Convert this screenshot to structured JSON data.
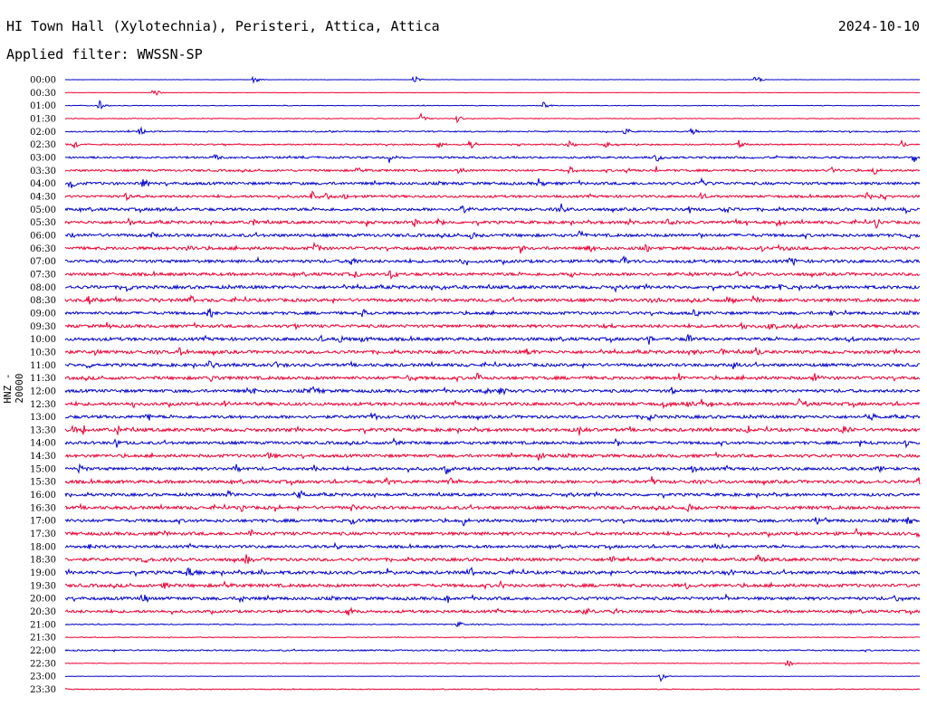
{
  "header": {
    "title": "HI Town Hall (Xylotechnia), Peristeri, Attica, Attica",
    "date": "2024-10-10",
    "filter": "Applied filter: WWSSN-SP",
    "channel_label": "HNZ - 20000"
  },
  "colors": {
    "odd_trace": "#0000cc",
    "even_trace": "#ee0033"
  },
  "chart_data": {
    "type": "line",
    "title": "HI Town Hall (Xylotechnia), Peristeri, Attica, Attica",
    "ylabel": "HNZ - 20000",
    "series": [
      {
        "label": "00:00",
        "amp": 0.2,
        "events": [
          280,
          458,
          835
        ]
      },
      {
        "label": "00:30",
        "amp": 0.2,
        "events": [
          170
        ]
      },
      {
        "label": "01:00",
        "amp": 0.4,
        "events": [
          110,
          600
        ]
      },
      {
        "label": "01:30",
        "amp": 0.5,
        "events": [
          465,
          505
        ]
      },
      {
        "label": "02:00",
        "amp": 0.8,
        "events": [
          155,
          690,
          765
        ]
      },
      {
        "label": "02:30",
        "amp": 0.9,
        "events": [
          82,
          485,
          520,
          628,
          668,
          815,
          995
        ]
      },
      {
        "label": "03:00",
        "amp": 1.3,
        "events": [
          238,
          430,
          725,
          1010
        ]
      },
      {
        "label": "03:30",
        "amp": 1.4,
        "events": [
          395,
          507,
          630,
          693,
          725,
          918,
          965
        ]
      },
      {
        "label": "04:00",
        "amp": 1.8,
        "events": [
          78,
          158,
          595,
          775
        ]
      },
      {
        "label": "04:30",
        "amp": 1.6,
        "events": [
          140,
          345,
          360,
          380,
          775,
          958,
          975
        ]
      },
      {
        "label": "05:00",
        "amp": 1.9,
        "events": [
          175,
          510,
          620,
          762,
          800,
          1000
        ]
      },
      {
        "label": "05:30",
        "amp": 1.9,
        "events": [
          142,
          280,
          405,
          458,
          482,
          693,
          737,
          825,
          860,
          968
        ]
      },
      {
        "label": "06:00",
        "amp": 2.0,
        "events": [
          80,
          168,
          520,
          640,
          770,
          1002
        ]
      },
      {
        "label": "06:30",
        "amp": 2.0,
        "events": [
          207,
          347,
          575,
          650,
          715,
          842,
          868
        ]
      },
      {
        "label": "07:00",
        "amp": 2.0,
        "events": [
          285,
          388,
          510,
          688,
          875
        ]
      },
      {
        "label": "07:30",
        "amp": 2.0,
        "events": [
          392,
          432,
          630,
          763,
          815
        ]
      },
      {
        "label": "08:00",
        "amp": 2.1,
        "events": [
          140,
          488,
          680,
          862
        ]
      },
      {
        "label": "08:30",
        "amp": 2.1,
        "events": [
          98,
          168,
          210,
          718,
          805,
          832
        ]
      },
      {
        "label": "09:00",
        "amp": 1.9,
        "events": [
          232,
          402,
          768,
          918
        ]
      },
      {
        "label": "09:30",
        "amp": 2.0,
        "events": [
          118,
          327,
          670,
          820,
          848,
          878
        ]
      },
      {
        "label": "10:00",
        "amp": 2.1,
        "events": [
          353,
          375,
          400,
          717,
          760,
          937
        ]
      },
      {
        "label": "10:30",
        "amp": 2.1,
        "events": [
          105,
          198,
          582,
          768,
          797,
          835
        ]
      },
      {
        "label": "11:00",
        "amp": 2.0,
        "events": [
          98,
          230,
          260,
          305,
          810
        ]
      },
      {
        "label": "11:30",
        "amp": 2.1,
        "events": [
          232,
          452,
          527,
          750,
          900
        ]
      },
      {
        "label": "12:00",
        "amp": 2.0,
        "events": [
          278,
          345,
          538,
          552,
          742
        ]
      },
      {
        "label": "12:30",
        "amp": 2.1,
        "events": [
          146,
          248,
          733,
          760,
          775,
          882
        ]
      },
      {
        "label": "13:00",
        "amp": 2.0,
        "events": [
          163,
          412,
          718,
          962
        ]
      },
      {
        "label": "13:30",
        "amp": 2.2,
        "events": [
          80,
          92,
          130,
          640,
          827,
          932
        ]
      },
      {
        "label": "14:00",
        "amp": 1.9,
        "events": [
          128,
          435,
          680,
          950,
          1000
        ]
      },
      {
        "label": "14:30",
        "amp": 2.0,
        "events": [
          295,
          595
        ]
      },
      {
        "label": "15:00",
        "amp": 2.0,
        "events": [
          88,
          260,
          345,
          493,
          765,
          970
        ]
      },
      {
        "label": "15:30",
        "amp": 2.1,
        "events": [
          427,
          497,
          720,
          1015
        ]
      },
      {
        "label": "16:00",
        "amp": 1.9,
        "events": [
          252,
          330,
          628
        ]
      },
      {
        "label": "16:30",
        "amp": 2.1,
        "events": [
          265,
          303,
          390,
          760
        ]
      },
      {
        "label": "17:00",
        "amp": 2.0,
        "events": [
          388,
          512,
          900,
          1002
        ]
      },
      {
        "label": "17:30",
        "amp": 2.1,
        "events": [
          178,
          275,
          945,
          1015
        ]
      },
      {
        "label": "18:00",
        "amp": 1.8,
        "events": [
          97,
          370,
          792
        ]
      },
      {
        "label": "18:30",
        "amp": 2.0,
        "events": [
          158,
          272,
          675,
          837
        ]
      },
      {
        "label": "19:00",
        "amp": 2.1,
        "events": [
          208,
          287,
          428,
          520,
          803
        ]
      },
      {
        "label": "19:30",
        "amp": 2.1,
        "events": [
          180,
          248,
          553,
          757
        ]
      },
      {
        "label": "20:00",
        "amp": 2.0,
        "events": [
          158,
          265,
          493,
          800,
          990
        ]
      },
      {
        "label": "20:30",
        "amp": 1.8,
        "events": [
          385,
          645,
          680
        ]
      },
      {
        "label": "21:00",
        "amp": 0.7,
        "events": [
          505
        ]
      },
      {
        "label": "21:30",
        "amp": 0.5,
        "events": []
      },
      {
        "label": "22:00",
        "amp": 0.9,
        "events": []
      },
      {
        "label": "22:30",
        "amp": 0.4,
        "events": [
          870
        ]
      },
      {
        "label": "23:00",
        "amp": 0.3,
        "events": [
          730
        ]
      },
      {
        "label": "23:30",
        "amp": 0.6,
        "events": []
      }
    ]
  }
}
